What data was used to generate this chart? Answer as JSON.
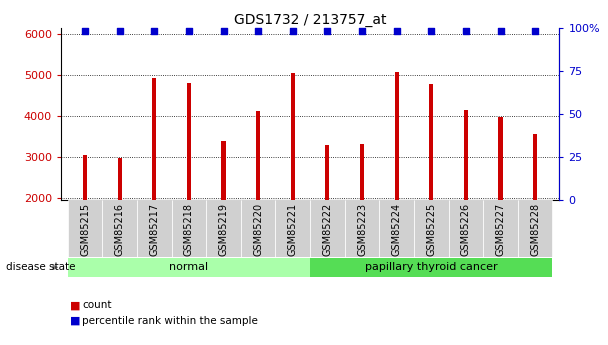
{
  "title": "GDS1732 / 213757_at",
  "samples": [
    "GSM85215",
    "GSM85216",
    "GSM85217",
    "GSM85218",
    "GSM85219",
    "GSM85220",
    "GSM85221",
    "GSM85222",
    "GSM85223",
    "GSM85224",
    "GSM85225",
    "GSM85226",
    "GSM85227",
    "GSM85228"
  ],
  "counts": [
    3050,
    2980,
    4920,
    4800,
    3380,
    4130,
    5040,
    3290,
    3310,
    5080,
    4780,
    4140,
    3970,
    3550
  ],
  "percentile_values": [
    98,
    98,
    98,
    98,
    98,
    98,
    98,
    98,
    98,
    98,
    98,
    98,
    98,
    98
  ],
  "bar_color": "#cc0000",
  "dot_color": "#0000cc",
  "ylim_left": [
    1950,
    6150
  ],
  "ylim_right": [
    0,
    100
  ],
  "yticks_left": [
    2000,
    3000,
    4000,
    5000,
    6000
  ],
  "yticks_right": [
    0,
    25,
    50,
    75,
    100
  ],
  "groups": [
    {
      "label": "normal",
      "start": 0,
      "end": 7,
      "color": "#aaffaa"
    },
    {
      "label": "papillary thyroid cancer",
      "start": 7,
      "end": 14,
      "color": "#55dd55"
    }
  ],
  "disease_state_label": "disease state",
  "legend_items": [
    {
      "label": "count",
      "color": "#cc0000"
    },
    {
      "label": "percentile rank within the sample",
      "color": "#0000cc"
    }
  ],
  "grid_color": "black",
  "grid_linestyle": ":",
  "title_fontsize": 10,
  "tick_label_fontsize": 7,
  "axis_color_left": "#cc0000",
  "axis_color_right": "#0000cc",
  "bg_color": "#ffffff",
  "bar_width": 0.12,
  "tick_bg_color": "#d0d0d0"
}
